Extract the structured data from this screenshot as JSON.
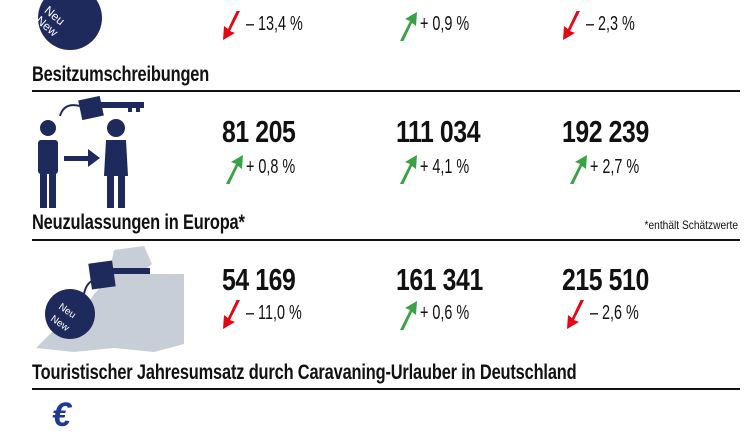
{
  "colors": {
    "navy": "#1f2a5c",
    "up": "#3aa245",
    "down": "#e30613",
    "map": "#c8ced8"
  },
  "badge": {
    "line1": "Neu",
    "line2": "New"
  },
  "top_row": {
    "values": [
      {
        "change": "– 13,4 %",
        "trend": "down"
      },
      {
        "change": "+ 0,9 %",
        "trend": "up"
      },
      {
        "change": "– 2,3 %",
        "trend": "down"
      }
    ]
  },
  "besitz": {
    "title": "Besitzumschreibungen",
    "values": [
      {
        "number": "81 205",
        "change": "+ 0,8 %",
        "trend": "up"
      },
      {
        "number": "111 034",
        "change": "+ 4,1 %",
        "trend": "up"
      },
      {
        "number": "192 239",
        "change": "+ 2,7 %",
        "trend": "up"
      }
    ]
  },
  "europa": {
    "title": "Neuzulassungen in Europa*",
    "note": "*enthält Schätzwerte",
    "values": [
      {
        "number": "54 169",
        "change": "– 11,0 %",
        "trend": "down"
      },
      {
        "number": "161 341",
        "change": "+ 0,6 %",
        "trend": "up"
      },
      {
        "number": "215 510",
        "change": "– 2,6 %",
        "trend": "down"
      }
    ]
  },
  "umsatz": {
    "title": "Touristischer Jahresumsatz durch Caravaning-Urlauber in Deutschland",
    "icon_symbol": "€"
  }
}
